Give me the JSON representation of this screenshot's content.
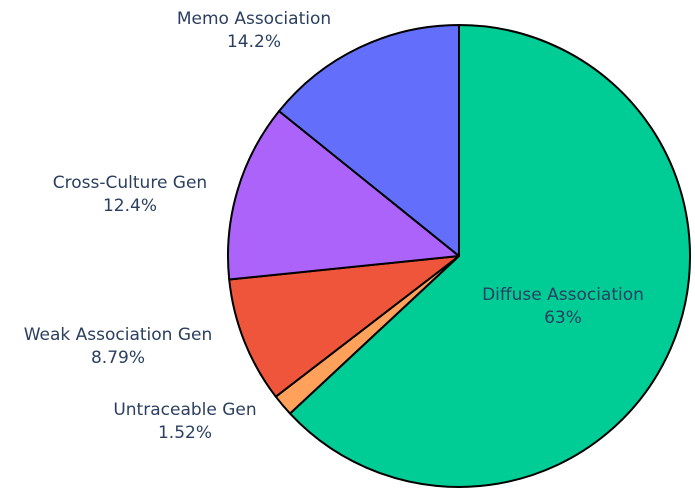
{
  "chart_data": {
    "type": "pie",
    "categories": [
      "Diffuse Association",
      "Untraceable Gen",
      "Weak Association Gen",
      "Cross-Culture Gen",
      "Memo Association"
    ],
    "values": [
      63,
      1.52,
      8.79,
      12.4,
      14.2
    ],
    "value_labels": [
      "63%",
      "1.52%",
      "8.79%",
      "12.4%",
      "14.2%"
    ],
    "colors": [
      "#00cc96",
      "#ffa15a",
      "#ef553b",
      "#ab63fa",
      "#636efa"
    ],
    "start_angle_deg": 0,
    "direction": "clockwise",
    "title": "",
    "legend": "none"
  }
}
